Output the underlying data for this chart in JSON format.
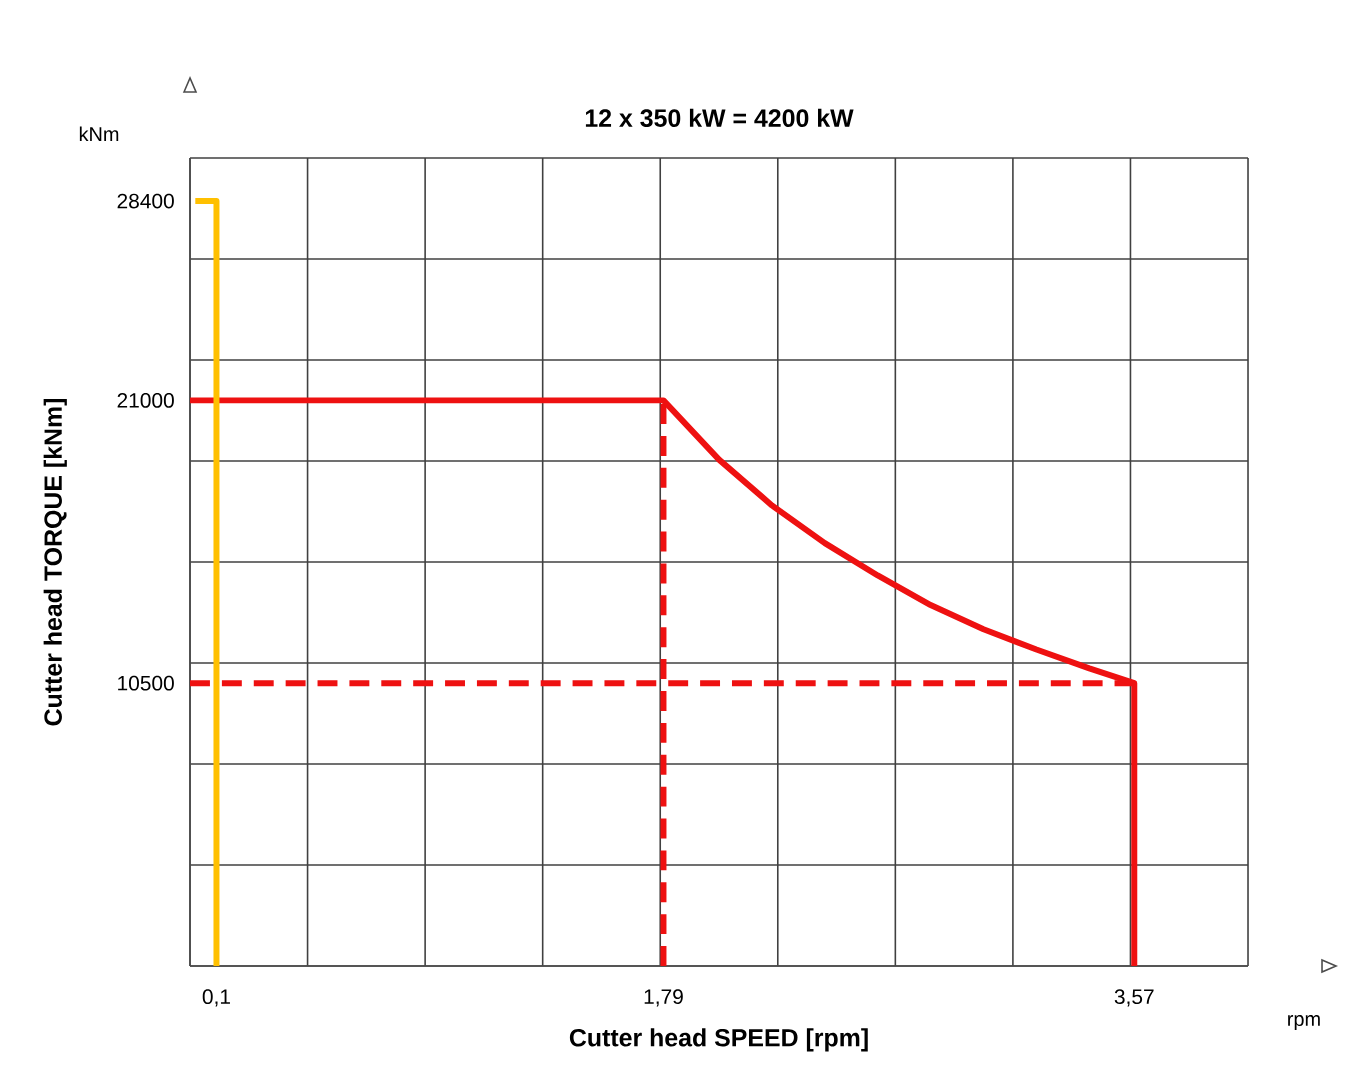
{
  "chart_data": {
    "type": "line",
    "title": "12 x 350 kW = 4200 kW",
    "xlabel": "Cutter head SPEED [rpm]",
    "ylabel": "Cutter head TORQUE [kNm]",
    "annotations": [
      "kNm",
      "rpm"
    ],
    "xlim": [
      0,
      4.0
    ],
    "ylim": [
      0,
      30000
    ],
    "xticks": [
      {
        "value": 0.1,
        "label": "0,1"
      },
      {
        "value": 1.79,
        "label": "1,79"
      },
      {
        "value": 3.57,
        "label": "3,57"
      }
    ],
    "yticks": [
      10500,
      21000,
      28400
    ],
    "grid": true,
    "marker": "none",
    "series": [
      {
        "color": "#ee1111",
        "line_style": "dashed",
        "x": [
          0,
          3.57,
          null,
          1.79,
          1.79
        ],
        "values": [
          10500,
          10500,
          null,
          0,
          21000
        ]
      },
      {
        "color": "#ee1111",
        "line_style": "solid",
        "x": [
          0,
          1.79,
          2.0,
          2.2,
          2.4,
          2.6,
          2.8,
          3.0,
          3.2,
          3.4,
          3.57,
          3.57
        ],
        "values": [
          21000,
          21000,
          18800,
          17100,
          15700,
          14500,
          13400,
          12500,
          11750,
          11050,
          10500,
          0
        ]
      },
      {
        "color": "#ffc000",
        "line_style": "solid",
        "x": [
          0.02,
          0.1,
          0.1
        ],
        "values": [
          28400,
          28400,
          0
        ]
      }
    ]
  }
}
